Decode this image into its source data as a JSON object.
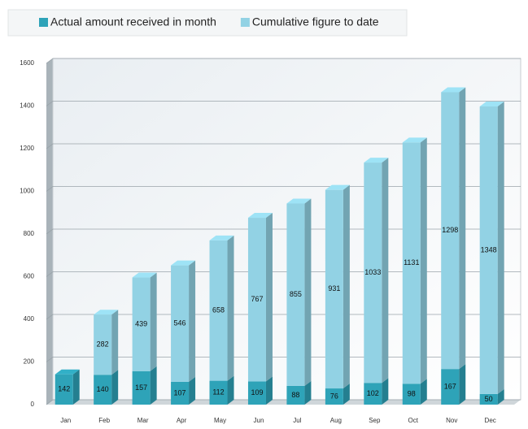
{
  "chart_data": {
    "type": "bar",
    "stacked": true,
    "categories": [
      "Jan",
      "Feb",
      "Mar",
      "Apr",
      "May",
      "Jun",
      "Jul",
      "Aug",
      "Sep",
      "Oct",
      "Nov",
      "Dec"
    ],
    "series": [
      {
        "name": "Actual amount received in month",
        "color": "#2ea3b8",
        "values": [
          142,
          140,
          157,
          107,
          112,
          109,
          88,
          76,
          102,
          98,
          167,
          50
        ]
      },
      {
        "name": "Cumulative figure to date",
        "color": "#92d2e4",
        "values": [
          null,
          282,
          439,
          546,
          658,
          767,
          855,
          931,
          1033,
          1131,
          1298,
          1348
        ]
      }
    ],
    "ylim": [
      0,
      1600
    ],
    "yticks": [
      0,
      200,
      400,
      600,
      800,
      1000,
      1200,
      1400,
      1600
    ],
    "grid": true,
    "legend": "top"
  }
}
